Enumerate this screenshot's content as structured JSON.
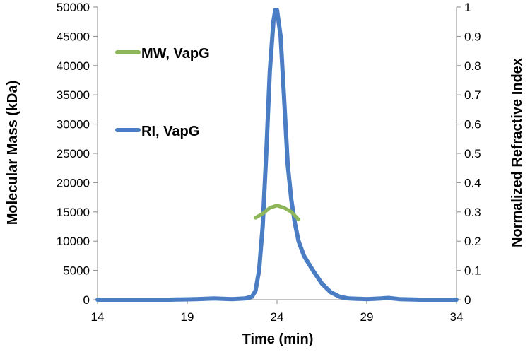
{
  "chart_data": {
    "type": "line",
    "xlabel": "Time (min)",
    "ylabel_left": "Molecular Mass (kDa)",
    "ylabel_right": "Normalized Refractive Index",
    "xlim": [
      14,
      34
    ],
    "x_ticks": [
      14,
      19,
      24,
      29,
      34
    ],
    "ylim_left": [
      0,
      50000
    ],
    "y_ticks_left": [
      0,
      5000,
      10000,
      15000,
      20000,
      25000,
      30000,
      35000,
      40000,
      45000,
      50000
    ],
    "ylim_right": [
      0,
      1
    ],
    "y_ticks_right": [
      0,
      0.1,
      0.2,
      0.3,
      0.4,
      0.5,
      0.6,
      0.7,
      0.8,
      0.9,
      1
    ],
    "grid": false,
    "legend_position": "upper-left",
    "series": [
      {
        "name": "MW, VapG",
        "axis": "left",
        "color": "#8db55a",
        "x": [
          22.8,
          23.2,
          23.6,
          24.0,
          24.4,
          24.8,
          25.2
        ],
        "y": [
          14000,
          14700,
          15700,
          16100,
          15700,
          15000,
          13700
        ]
      },
      {
        "name": "RI, VapG",
        "axis": "right",
        "color": "#4a7dc4",
        "x": [
          14,
          18,
          19.5,
          20.5,
          21.5,
          22.2,
          22.6,
          22.8,
          23.0,
          23.2,
          23.4,
          23.6,
          23.8,
          23.9,
          24.0,
          24.2,
          24.4,
          24.6,
          24.8,
          25.0,
          25.2,
          25.5,
          26.0,
          26.5,
          27.0,
          27.5,
          28.0,
          29.0,
          29.8,
          30.2,
          30.8,
          32.0,
          34.0
        ],
        "y": [
          0.0,
          0.0,
          0.002,
          0.004,
          0.002,
          0.004,
          0.01,
          0.03,
          0.1,
          0.25,
          0.5,
          0.78,
          0.95,
          0.99,
          0.99,
          0.9,
          0.68,
          0.46,
          0.34,
          0.26,
          0.2,
          0.15,
          0.1,
          0.055,
          0.025,
          0.01,
          0.004,
          0.002,
          0.004,
          0.006,
          0.002,
          0.0,
          0.0
        ]
      }
    ]
  }
}
